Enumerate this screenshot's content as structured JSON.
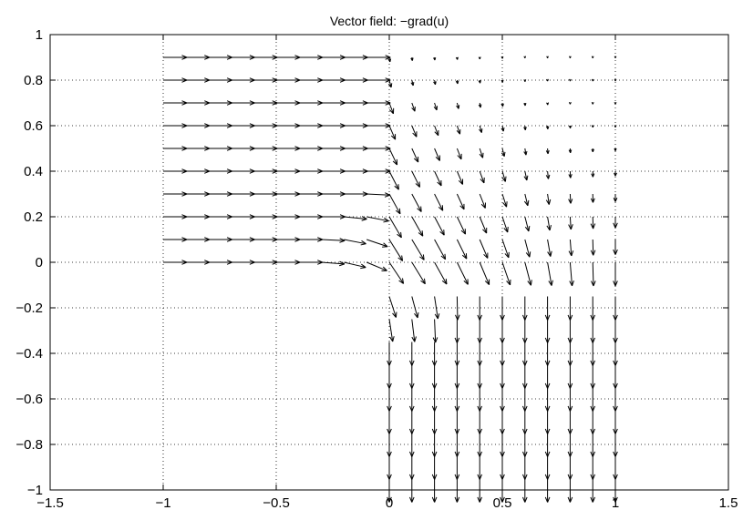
{
  "chart_data": {
    "type": "quiver",
    "title": "Vector field: −grad(u)",
    "xlabel": "",
    "ylabel": "",
    "xlim": [
      -1.5,
      1.5
    ],
    "ylim": [
      -1,
      1
    ],
    "grid": true,
    "x_ticks": [
      -1.5,
      -1,
      -0.5,
      0,
      0.5,
      1,
      1.5
    ],
    "x_tick_labels": [
      "−1.5",
      "−1",
      "−0.5",
      "0",
      "0.5",
      "1",
      "1.5"
    ],
    "y_ticks": [
      -1,
      -0.8,
      -0.6,
      -0.4,
      -0.2,
      0,
      0.2,
      0.4,
      0.6,
      0.8,
      1
    ],
    "y_tick_labels": [
      "−1",
      "−0.8",
      "−0.6",
      "−0.4",
      "−0.2",
      "0",
      "0.2",
      "0.4",
      "0.6",
      "0.8",
      "1"
    ],
    "domain": "L-shaped region: [-1,1]x[0,1] union [0,1]x[-1,0]",
    "grid_x": [
      -1.0,
      -0.9,
      -0.8,
      -0.7,
      -0.6,
      -0.5,
      -0.4,
      -0.3,
      -0.2,
      -0.1,
      0.0,
      0.1,
      0.2,
      0.3,
      0.4,
      0.5,
      0.6,
      0.7,
      0.8,
      0.9,
      1.0
    ],
    "grid_y": [
      -0.95,
      -0.85,
      -0.75,
      -0.65,
      -0.55,
      -0.45,
      -0.35,
      -0.25,
      -0.15,
      -0.05,
      0.0,
      0.1,
      0.2,
      0.3,
      0.4,
      0.5,
      0.6,
      0.7,
      0.8,
      0.9
    ],
    "flow": "Arrows point right (+x) in the upper-left arm, bend around the re-entrant corner at (0,0), and point down (-y) in the lower-right arm; magnitudes shrink near the top-right corner (1,1)."
  }
}
